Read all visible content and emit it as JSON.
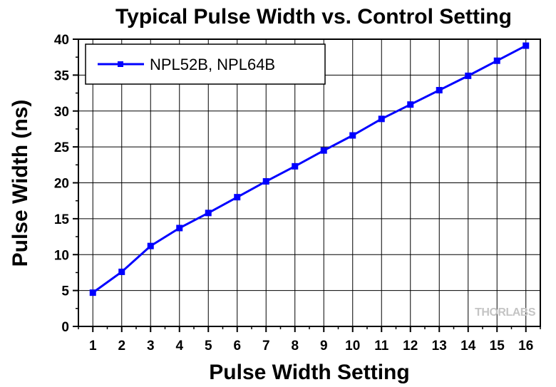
{
  "chart_data": {
    "type": "line",
    "title": "Typical Pulse Width vs. Control Setting",
    "xlabel": "Pulse Width Setting",
    "ylabel": "Pulse Width (ns)",
    "x": [
      1,
      2,
      3,
      4,
      5,
      6,
      7,
      8,
      9,
      10,
      11,
      12,
      13,
      14,
      15,
      16
    ],
    "series": [
      {
        "name": "NPL52B, NPL64B",
        "values": [
          4.7,
          7.6,
          11.2,
          13.7,
          15.8,
          18.0,
          20.2,
          22.3,
          24.5,
          26.6,
          28.9,
          30.9,
          32.9,
          34.9,
          37.0,
          39.1
        ]
      }
    ],
    "xlim": [
      0.5,
      16.5
    ],
    "ylim": [
      0,
      40
    ],
    "xticks": [
      "1",
      "2",
      "3",
      "4",
      "5",
      "6",
      "7",
      "8",
      "9",
      "10",
      "11",
      "12",
      "13",
      "14",
      "15",
      "16"
    ],
    "yticks": [
      "0",
      "5",
      "10",
      "15",
      "20",
      "25",
      "30",
      "35",
      "40"
    ],
    "grid": true,
    "legend_position": "top-left",
    "line_color": "#0000ff",
    "watermark": "THORLABS"
  }
}
